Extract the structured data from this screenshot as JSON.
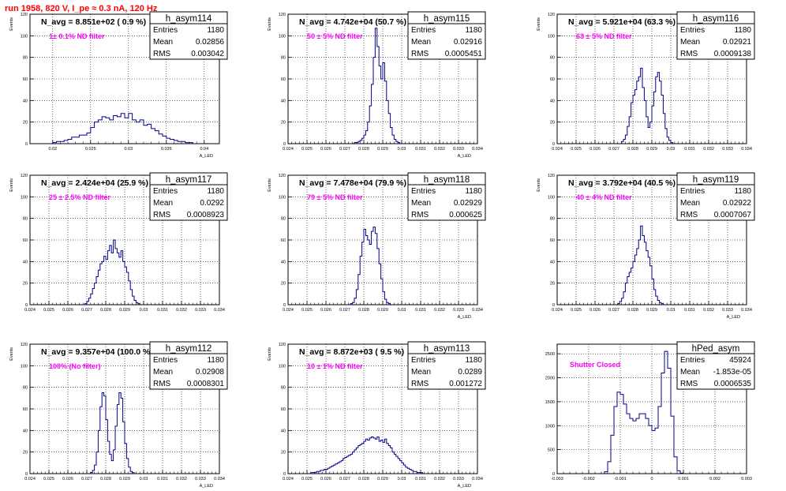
{
  "page": {
    "title": "run 1958,   820 V, I_pe ≈ 0.3 nA, 120 Hz"
  },
  "stats_labels": {
    "entries": "Entries",
    "mean": "Mean",
    "rms": "RMS"
  },
  "colors": {
    "title": "#ff0000",
    "annotation": "#ff00ff",
    "histogram": "#00008b",
    "grid": "#000000",
    "frame": "#000000"
  },
  "chart_data": [
    {
      "type": "histogram",
      "name": "h_asym114",
      "header": "N_avg = 8.851e+02 ( 0.9 %)",
      "note": "1± 0.1% ND filter",
      "entries": "1180",
      "mean": "0.02856",
      "rms": "0.003042",
      "ylabel": "Events",
      "xlabel": "A_LED",
      "xlim": [
        0.017,
        0.042
      ],
      "ylim": [
        0,
        120
      ],
      "xticks": [
        0.02,
        0.025,
        0.03,
        0.035,
        0.04
      ],
      "xtick_labels": [
        "0.02",
        "0.025",
        "0.03",
        "0.035",
        "0.04"
      ],
      "yticks": [
        0,
        20,
        40,
        60,
        80,
        100,
        120
      ],
      "ytick_labels": [
        "0",
        "20",
        "40",
        "60",
        "80",
        "100",
        "120"
      ],
      "bin_start": 0.02,
      "bin_width": 0.0005,
      "counts": [
        1,
        2,
        2,
        3,
        4,
        6,
        6,
        8,
        8,
        10,
        15,
        20,
        22,
        25,
        24,
        22,
        26,
        25,
        28,
        24,
        28,
        22,
        20,
        22,
        17,
        18,
        14,
        12,
        9,
        7,
        5,
        4,
        3,
        2,
        2,
        1,
        1
      ]
    },
    {
      "type": "histogram",
      "name": "h_asym115",
      "header": "N_avg = 4.742e+04 (50.7 %)",
      "note": "50 ± 5% ND filter",
      "entries": "1180",
      "mean": "0.02916",
      "rms": "0.0005451",
      "ylabel": "Events",
      "xlabel": "A_LED",
      "xlim": [
        0.024,
        0.034
      ],
      "ylim": [
        0,
        120
      ],
      "xticks": [
        0.024,
        0.025,
        0.026,
        0.027,
        0.028,
        0.029,
        0.03,
        0.031,
        0.032,
        0.033,
        0.034
      ],
      "xtick_labels": [
        "0.024",
        "0.025",
        "0.026",
        "0.027",
        "0.028",
        "0.029",
        "0.03",
        "0.031",
        "0.032",
        "0.033",
        "0.034"
      ],
      "yticks": [
        0,
        20,
        40,
        60,
        80,
        100,
        120
      ],
      "ytick_labels": [
        "0",
        "20",
        "40",
        "60",
        "80",
        "100",
        "120"
      ],
      "bin_start": 0.0275,
      "bin_width": 0.0001,
      "counts": [
        1,
        1,
        2,
        3,
        5,
        8,
        12,
        20,
        35,
        55,
        80,
        107,
        90,
        72,
        60,
        75,
        58,
        40,
        28,
        15,
        8,
        4,
        2,
        1
      ]
    },
    {
      "type": "histogram",
      "name": "h_asym116",
      "header": "N_avg = 5.921e+04 (63.3 %)",
      "note": "63 ± 5% ND filter",
      "entries": "1180",
      "mean": "0.02921",
      "rms": "0.0009138",
      "ylabel": "Events",
      "xlabel": "",
      "xlim": [
        0.024,
        0.034
      ],
      "ylim": [
        0,
        120
      ],
      "xticks": [
        0.024,
        0.025,
        0.026,
        0.027,
        0.028,
        0.029,
        0.03,
        0.031,
        0.032,
        0.033,
        0.034
      ],
      "xtick_labels": [
        "0.024",
        "0.025",
        "0.026",
        "0.027",
        "0.028",
        "0.029",
        "0.03",
        "0.031",
        "0.032",
        "0.033",
        "0.034"
      ],
      "yticks": [
        0,
        20,
        40,
        60,
        80,
        100,
        120
      ],
      "ytick_labels": [
        "0",
        "20",
        "40",
        "60",
        "80",
        "100",
        "120"
      ],
      "bin_start": 0.0274,
      "bin_width": 0.0001,
      "counts": [
        2,
        4,
        8,
        16,
        25,
        38,
        45,
        50,
        58,
        62,
        70,
        52,
        40,
        25,
        15,
        20,
        35,
        48,
        62,
        66,
        58,
        45,
        28,
        14,
        6,
        3,
        1
      ]
    },
    {
      "type": "histogram",
      "name": "h_asym117",
      "header": "N_avg = 2.424e+04 (25.9 %)",
      "note": "25 ± 2.5% ND filter",
      "entries": "1180",
      "mean": "0.0292",
      "rms": "0.0008923",
      "ylabel": "Events",
      "xlabel": "",
      "xlim": [
        0.024,
        0.034
      ],
      "ylim": [
        0,
        120
      ],
      "xticks": [
        0.024,
        0.025,
        0.026,
        0.027,
        0.028,
        0.029,
        0.03,
        0.031,
        0.032,
        0.033,
        0.034
      ],
      "xtick_labels": [
        "0.024",
        "0.025",
        "0.026",
        "0.027",
        "0.028",
        "0.029",
        "0.03",
        "0.031",
        "0.032",
        "0.033",
        "0.034"
      ],
      "yticks": [
        0,
        20,
        40,
        60,
        80,
        100,
        120
      ],
      "ytick_labels": [
        "0",
        "20",
        "40",
        "60",
        "80",
        "100",
        "120"
      ],
      "bin_start": 0.0269,
      "bin_width": 0.0001,
      "counts": [
        1,
        3,
        6,
        10,
        15,
        20,
        26,
        32,
        38,
        40,
        45,
        42,
        50,
        55,
        48,
        60,
        52,
        48,
        44,
        50,
        40,
        35,
        30,
        22,
        14,
        8,
        4,
        2,
        1
      ]
    },
    {
      "type": "histogram",
      "name": "h_asym118",
      "header": "N_avg = 7.478e+04 (79.9 %)",
      "note": "79 ± 5% ND filter",
      "entries": "1180",
      "mean": "0.02929",
      "rms": "0.000625",
      "ylabel": "Events",
      "xlabel": "A_LED",
      "xlim": [
        0.024,
        0.034
      ],
      "ylim": [
        0,
        120
      ],
      "xticks": [
        0.024,
        0.025,
        0.026,
        0.027,
        0.028,
        0.029,
        0.03,
        0.031,
        0.032,
        0.033,
        0.034
      ],
      "xtick_labels": [
        "0.024",
        "0.025",
        "0.026",
        "0.027",
        "0.028",
        "0.029",
        "0.03",
        "0.031",
        "0.032",
        "0.033",
        "0.034"
      ],
      "yticks": [
        0,
        20,
        40,
        60,
        80,
        100,
        120
      ],
      "ytick_labels": [
        "0",
        "20",
        "40",
        "60",
        "80",
        "100",
        "120"
      ],
      "bin_start": 0.0273,
      "bin_width": 0.0001,
      "counts": [
        1,
        2,
        6,
        14,
        28,
        45,
        58,
        70,
        64,
        60,
        56,
        68,
        72,
        66,
        52,
        38,
        24,
        12,
        5,
        2,
        1
      ]
    },
    {
      "type": "histogram",
      "name": "h_asym119",
      "header": "N_avg = 3.792e+04 (40.5 %)",
      "note": "40 ± 4% ND filter",
      "entries": "1180",
      "mean": "0.02922",
      "rms": "0.0007067",
      "ylabel": "Events",
      "xlabel": "A_LED",
      "xlim": [
        0.024,
        0.034
      ],
      "ylim": [
        0,
        120
      ],
      "xticks": [
        0.024,
        0.025,
        0.026,
        0.027,
        0.028,
        0.029,
        0.03,
        0.031,
        0.032,
        0.033,
        0.034
      ],
      "xtick_labels": [
        "0.024",
        "0.025",
        "0.026",
        "0.027",
        "0.028",
        "0.029",
        "0.03",
        "0.031",
        "0.032",
        "0.033",
        "0.034"
      ],
      "yticks": [
        0,
        20,
        40,
        60,
        80,
        100,
        120
      ],
      "ytick_labels": [
        "0",
        "20",
        "40",
        "60",
        "80",
        "100",
        "120"
      ],
      "bin_start": 0.0272,
      "bin_width": 0.0001,
      "counts": [
        1,
        3,
        6,
        12,
        20,
        26,
        30,
        34,
        40,
        46,
        52,
        60,
        73,
        64,
        58,
        50,
        44,
        36,
        24,
        14,
        8,
        4,
        2,
        1
      ]
    },
    {
      "type": "histogram",
      "name": "h_asym112",
      "header": "N_avg = 9.357e+04 (100.0 %)",
      "note": "100% (No filter)",
      "entries": "1180",
      "mean": "0.02908",
      "rms": "0.0008301",
      "ylabel": "Events",
      "xlabel": "A_LED",
      "xlim": [
        0.024,
        0.034
      ],
      "ylim": [
        0,
        120
      ],
      "xticks": [
        0.024,
        0.025,
        0.026,
        0.027,
        0.028,
        0.029,
        0.03,
        0.031,
        0.032,
        0.033,
        0.034
      ],
      "xtick_labels": [
        "0.024",
        "0.025",
        "0.026",
        "0.027",
        "0.028",
        "0.029",
        "0.03",
        "0.031",
        "0.032",
        "0.033",
        "0.034"
      ],
      "yticks": [
        0,
        20,
        40,
        60,
        80,
        100,
        120
      ],
      "ytick_labels": [
        "0",
        "20",
        "40",
        "60",
        "80",
        "100",
        "120"
      ],
      "bin_start": 0.0272,
      "bin_width": 0.0001,
      "counts": [
        1,
        3,
        8,
        20,
        40,
        62,
        75,
        72,
        50,
        30,
        18,
        12,
        22,
        44,
        64,
        75,
        70,
        48,
        28,
        14,
        6,
        2,
        1
      ]
    },
    {
      "type": "histogram",
      "name": "h_asym113",
      "header": "N_avg = 8.872e+03 ( 9.5 %)",
      "note": "10 ± 1% ND filter",
      "entries": "1180",
      "mean": "0.0289",
      "rms": "0.001272",
      "ylabel": "Events",
      "xlabel": "A_LED",
      "xlim": [
        0.024,
        0.034
      ],
      "ylim": [
        0,
        120
      ],
      "xticks": [
        0.024,
        0.025,
        0.026,
        0.027,
        0.028,
        0.029,
        0.03,
        0.031,
        0.032,
        0.033,
        0.034
      ],
      "xtick_labels": [
        "0.024",
        "0.025",
        "0.026",
        "0.027",
        "0.028",
        "0.029",
        "0.03",
        "0.031",
        "0.032",
        "0.033",
        "0.034"
      ],
      "yticks": [
        0,
        20,
        40,
        60,
        80,
        100,
        120
      ],
      "ytick_labels": [
        "0",
        "20",
        "40",
        "60",
        "80",
        "100",
        "120"
      ],
      "bin_start": 0.0252,
      "bin_width": 0.0001,
      "counts": [
        1,
        1,
        1,
        2,
        2,
        3,
        3,
        4,
        4,
        5,
        6,
        7,
        8,
        9,
        10,
        11,
        12,
        14,
        15,
        16,
        17,
        18,
        20,
        22,
        24,
        26,
        27,
        28,
        30,
        32,
        31,
        33,
        34,
        33,
        32,
        34,
        30,
        31,
        29,
        32,
        28,
        26,
        24,
        20,
        18,
        16,
        14,
        12,
        10,
        8,
        6,
        5,
        4,
        3,
        2,
        2,
        1,
        1,
        1
      ]
    },
    {
      "type": "histogram",
      "name": "hPed_asym",
      "header": "",
      "note": "Shutter Closed",
      "entries": "45924",
      "mean": "-1.853e-05",
      "rms": "0.0006535",
      "ylabel": "",
      "xlabel": "",
      "xlim": [
        -0.003,
        0.003
      ],
      "ylim": [
        0,
        2700
      ],
      "xticks": [
        -0.003,
        -0.002,
        -0.001,
        0,
        0.001,
        0.002,
        0.003
      ],
      "xtick_labels": [
        "-0.003",
        "-0.002",
        "-0.001",
        "0",
        "0.001",
        "0.002",
        "0.003"
      ],
      "yticks": [
        0,
        500,
        1000,
        1500,
        2000,
        2500
      ],
      "ytick_labels": [
        "0",
        "500",
        "1000",
        "1500",
        "2000",
        "2500"
      ],
      "bin_start": -0.0015,
      "bin_width": 0.0001,
      "counts": [
        40,
        250,
        800,
        1400,
        1700,
        1650,
        1450,
        1250,
        1150,
        1100,
        1150,
        1250,
        1250,
        1150,
        1000,
        900,
        950,
        1400,
        2100,
        2550,
        2200,
        1200,
        350,
        60,
        10
      ]
    }
  ]
}
